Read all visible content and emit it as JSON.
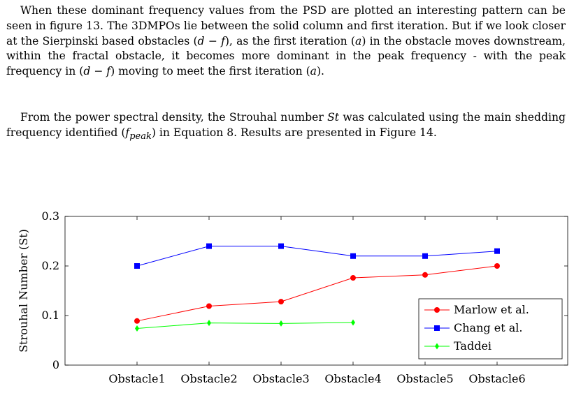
{
  "paragraph1": {
    "a": "When these dominant frequency values from the PSD are plotted an interesting pattern can be seen in figure 13. The 3DMPOs lie between the solid column and first iteration. But if we look closer at the Sierpinski based obstacles (",
    "a_math": "d − f",
    "b": "), as the first iteration (",
    "b_math": "a",
    "c": ") in the obstacle moves downstream, within the fractal obstacle, it becomes more dominant in the peak frequency - with the peak frequency in (",
    "c_math": "d − f",
    "d": ") moving to meet the first iteration (",
    "d_math": "a",
    "e": ")."
  },
  "paragraph2": {
    "a": "From the power spectral density, the Strouhal number ",
    "a_math": "St",
    "b": " was calculated using the main shedding frequency identified (",
    "b_math": "f",
    "b_sub": "peak",
    "c": ") in Equation 8. Results are presented in Figure 14."
  },
  "chart_data": {
    "type": "line",
    "categories": [
      "Obstacle1",
      "Obstacle2",
      "Obstacle3",
      "Obstacle4",
      "Obstacle5",
      "Obstacle6"
    ],
    "ylabel": "Strouhal Number (St)",
    "xlabel": "",
    "ylim": [
      0,
      0.3
    ],
    "yticks": [
      0,
      0.1,
      0.2,
      0.3
    ],
    "ytick_labels": [
      "0",
      "0.1",
      "0.2",
      "0.3"
    ],
    "grid": false,
    "legend_position": "bottom-right",
    "series": [
      {
        "name": "Marlow et al.",
        "color": "#ff0000",
        "marker": "circle",
        "values": [
          0.089,
          0.119,
          0.128,
          0.176,
          0.182,
          0.2
        ]
      },
      {
        "name": "Chang et al.",
        "color": "#0000ff",
        "marker": "square",
        "values": [
          0.2,
          0.24,
          0.24,
          0.22,
          0.22,
          0.23
        ]
      },
      {
        "name": "Taddei",
        "color": "#00ff00",
        "marker": "diamond",
        "values": [
          0.074,
          0.085,
          0.084,
          0.086,
          null,
          null
        ]
      }
    ]
  }
}
